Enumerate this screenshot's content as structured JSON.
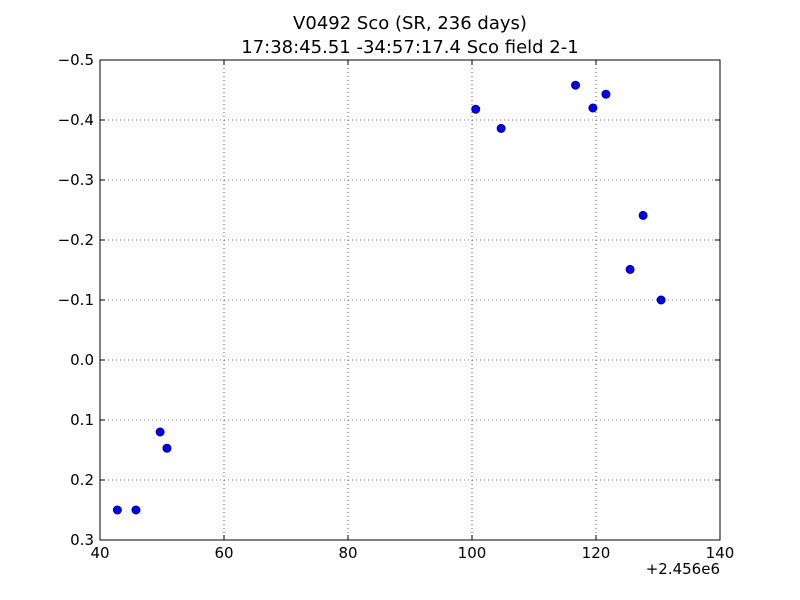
{
  "chart_data": {
    "type": "scatter",
    "title": "V0492 Sco  (SR, 236 days)",
    "subtitle": "17:38:45.51 -34:57:17.4 Sco field 2-1",
    "xlabel": "",
    "ylabel": "",
    "x_offset_label": "+2.456e6",
    "xlim": [
      40,
      140
    ],
    "ylim": [
      0.3,
      -0.5
    ],
    "y_inverted": true,
    "grid": true,
    "x_ticks": [
      "40",
      "60",
      "80",
      "100",
      "120",
      "140"
    ],
    "y_ticks": [
      "−0.5",
      "−0.4",
      "−0.3",
      "−0.2",
      "−0.1",
      "0.0",
      "0.1",
      "0.2",
      "0.3"
    ],
    "marker_color": "#0000ff",
    "marker_edge": "#000080",
    "points": [
      {
        "x": 42.8,
        "y": 0.25
      },
      {
        "x": 45.8,
        "y": 0.25
      },
      {
        "x": 49.7,
        "y": 0.12
      },
      {
        "x": 50.8,
        "y": 0.147
      },
      {
        "x": 100.6,
        "y": -0.418
      },
      {
        "x": 104.7,
        "y": -0.386
      },
      {
        "x": 116.7,
        "y": -0.458
      },
      {
        "x": 119.5,
        "y": -0.42
      },
      {
        "x": 121.6,
        "y": -0.443
      },
      {
        "x": 125.5,
        "y": -0.151
      },
      {
        "x": 127.6,
        "y": -0.241
      },
      {
        "x": 130.5,
        "y": -0.1
      }
    ]
  }
}
